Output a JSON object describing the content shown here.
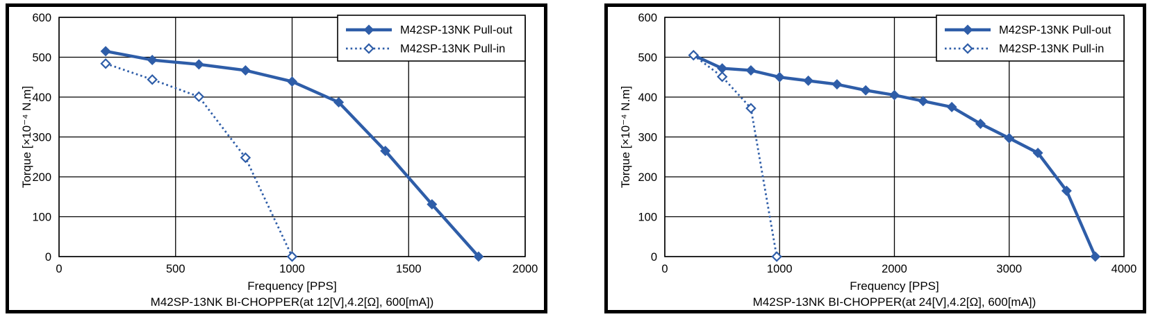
{
  "figure": {
    "background": "#ffffff",
    "panel_border_color": "#000000",
    "grid_color": "#000000",
    "accent_blue": "#2e5da8"
  },
  "chart_data": [
    {
      "type": "line",
      "title": "M42SP-13NK BI-CHOPPER(at 12[V],4.2[Ω], 600[mA])",
      "xlabel": "Frequency [PPS]",
      "ylabel": "Torque [×10⁻⁴ N.m]",
      "xlim": [
        0,
        2000
      ],
      "ylim": [
        0,
        600
      ],
      "xticks": [
        0,
        500,
        1000,
        1500,
        2000
      ],
      "yticks": [
        0,
        100,
        200,
        300,
        400,
        500,
        600
      ],
      "grid": true,
      "legend_position": "top-right",
      "series": [
        {
          "name": "M42SP-13NK Pull-out",
          "line_style": "solid",
          "marker": "filled-diamond",
          "color": "#2e5da8",
          "points": [
            [
              200,
              515
            ],
            [
              400,
              493
            ],
            [
              600,
              482
            ],
            [
              800,
              467
            ],
            [
              1000,
              439
            ],
            [
              1200,
              387
            ],
            [
              1400,
              265
            ],
            [
              1600,
              131
            ],
            [
              1800,
              0
            ]
          ]
        },
        {
          "name": "M42SP-13NK Pull-in",
          "line_style": "dotted",
          "marker": "open-diamond",
          "color": "#2e5da8",
          "points": [
            [
              200,
              484
            ],
            [
              400,
              444
            ],
            [
              600,
              401
            ],
            [
              800,
              248
            ],
            [
              1000,
              0
            ]
          ]
        }
      ]
    },
    {
      "type": "line",
      "title": "M42SP-13NK BI-CHOPPER(at 24[V],4.2[Ω], 600[mA])",
      "xlabel": "Frequency [PPS]",
      "ylabel": "Torque [×10⁻⁴ N.m]",
      "xlim": [
        0,
        4000
      ],
      "ylim": [
        0,
        600
      ],
      "xticks": [
        0,
        1000,
        2000,
        3000,
        4000
      ],
      "yticks": [
        0,
        100,
        200,
        300,
        400,
        500,
        600
      ],
      "grid": true,
      "legend_position": "top-right",
      "series": [
        {
          "name": "M42SP-13NK Pull-out",
          "line_style": "solid",
          "marker": "filled-diamond",
          "color": "#2e5da8",
          "points": [
            [
              250,
              505
            ],
            [
              500,
              472
            ],
            [
              750,
              467
            ],
            [
              1000,
              450
            ],
            [
              1250,
              441
            ],
            [
              1500,
              432
            ],
            [
              1750,
              417
            ],
            [
              2000,
              405
            ],
            [
              2250,
              390
            ],
            [
              2500,
              375
            ],
            [
              2750,
              333
            ],
            [
              3000,
              297
            ],
            [
              3250,
              260
            ],
            [
              3500,
              165
            ],
            [
              3750,
              0
            ]
          ]
        },
        {
          "name": "M42SP-13NK Pull-in",
          "line_style": "dotted",
          "marker": "open-diamond",
          "color": "#2e5da8",
          "points": [
            [
              250,
              505
            ],
            [
              500,
              451
            ],
            [
              750,
              372
            ],
            [
              975,
              0
            ]
          ]
        }
      ]
    }
  ]
}
